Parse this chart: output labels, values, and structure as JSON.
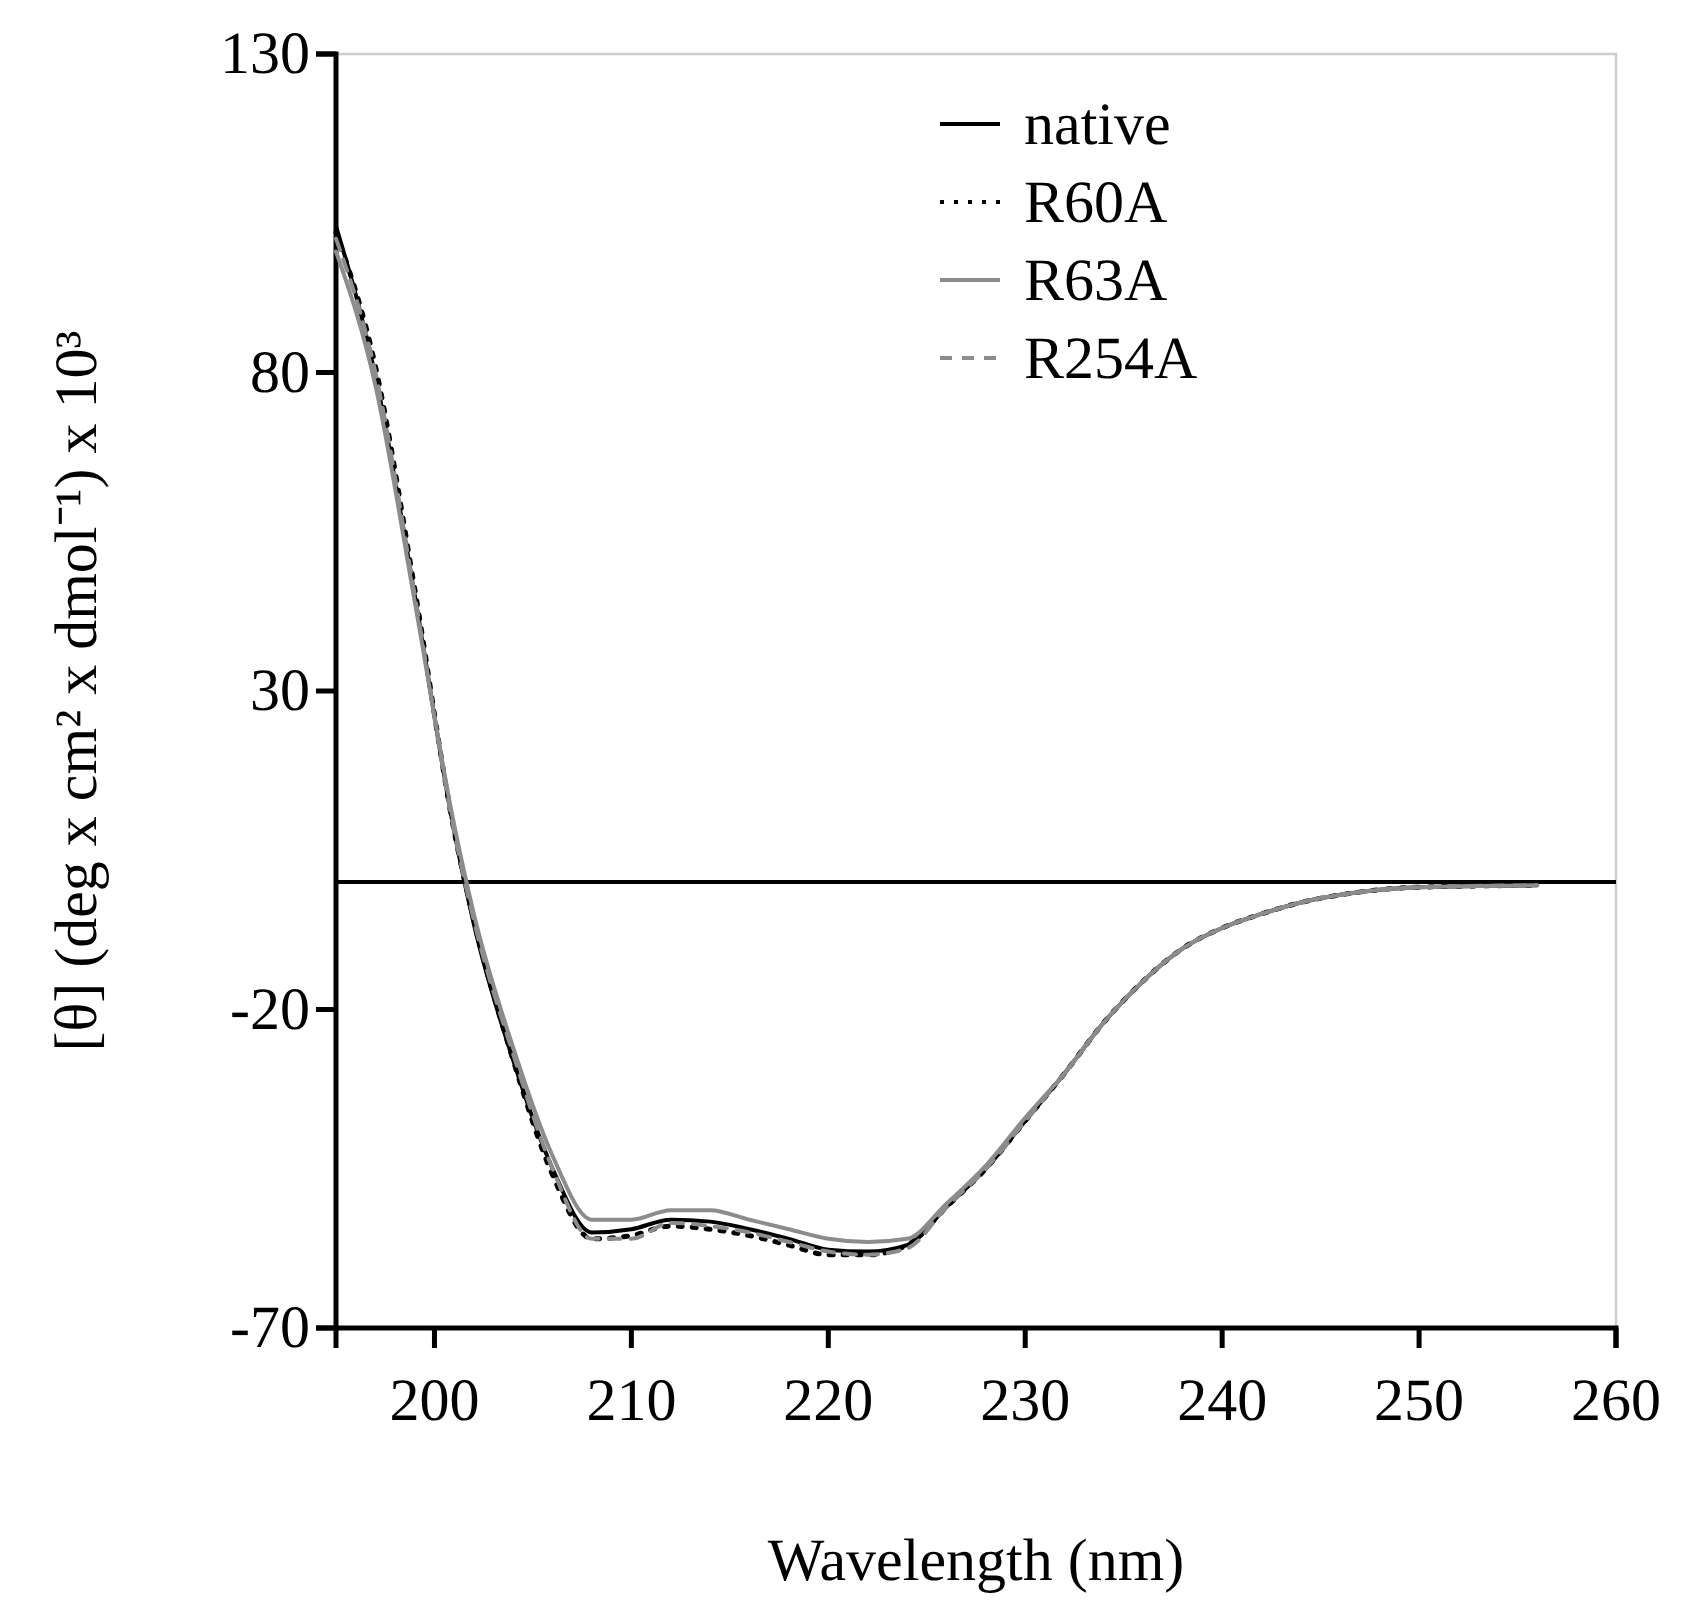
{
  "chart_data": {
    "type": "line",
    "xlabel": "Wavelength (nm)",
    "ylabel": "[θ] (deg x cm² x dmol⁻¹) x 10³",
    "x": [
      195,
      197,
      199,
      201,
      202,
      204,
      206,
      208,
      210,
      212,
      214,
      216,
      218,
      220,
      222,
      224,
      226,
      228,
      230,
      232,
      234,
      236,
      238,
      240,
      242,
      244,
      246,
      250,
      256
    ],
    "series": [
      {
        "name": "native",
        "color": "#000000",
        "line_style": "solid",
        "values": [
          103,
          79.5,
          45,
          8,
          -6.6,
          -28,
          -45,
          -55,
          -54.5,
          -53,
          -53.3,
          -54.5,
          -56,
          -57.7,
          -58,
          -57,
          -51,
          -45,
          -37.5,
          -30,
          -22,
          -15.5,
          -10.4,
          -7.2,
          -5,
          -3.2,
          -2,
          -0.8,
          -0.5
        ]
      },
      {
        "name": "R60A",
        "color": "#000000",
        "line_style": "dotted",
        "values": [
          102,
          81,
          46,
          8,
          -6,
          -28,
          -46,
          -56,
          -55.5,
          -54,
          -54.5,
          -55.5,
          -57,
          -58.5,
          -58.5,
          -57,
          -51,
          -45,
          -37.5,
          -30,
          -22,
          -15.5,
          -10.4,
          -7.2,
          -5,
          -3.2,
          -2,
          -0.8,
          -0.5
        ]
      },
      {
        "name": "R63A",
        "color": "#8c8c8c",
        "line_style": "solid",
        "values": [
          99,
          78,
          44,
          9,
          -5,
          -26,
          -43,
          -53,
          -53,
          -51.5,
          -51.5,
          -53,
          -54.5,
          -56,
          -56.5,
          -56,
          -50.5,
          -44.5,
          -37,
          -30,
          -22,
          -15.5,
          -10.4,
          -7.2,
          -5,
          -3.2,
          -2,
          -0.8,
          -0.5
        ]
      },
      {
        "name": "R254A",
        "color": "#8c8c8c",
        "line_style": "dashed",
        "values": [
          101,
          80,
          45,
          8,
          -6,
          -27,
          -45,
          -56,
          -56,
          -53.5,
          -54,
          -55,
          -56.5,
          -58,
          -58.5,
          -57.5,
          -51,
          -45,
          -37.5,
          -30,
          -22,
          -15.5,
          -10.4,
          -7.2,
          -5,
          -3.2,
          -2,
          -0.8,
          -0.5
        ]
      }
    ],
    "xlim": [
      195,
      260
    ],
    "xticks": [
      200,
      210,
      220,
      230,
      240,
      250,
      260
    ],
    "ylim": [
      -70,
      130
    ],
    "yticks": [
      -70,
      -20,
      30,
      80,
      130
    ],
    "ref_lines": [
      {
        "axis": "y",
        "value": 0,
        "color": "#000000"
      }
    ],
    "grid": false,
    "legend": "top right"
  }
}
